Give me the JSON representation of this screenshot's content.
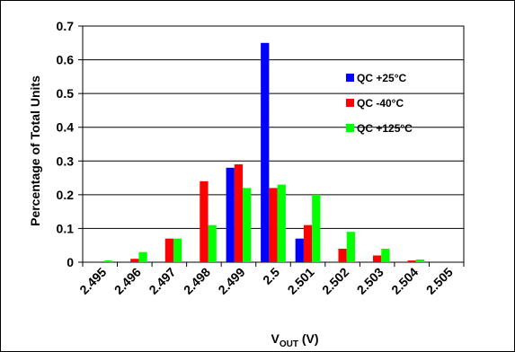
{
  "chart_data": {
    "type": "bar",
    "categories": [
      "2.495",
      "2.496",
      "2.497",
      "2.498",
      "2.499",
      "2.5",
      "2.501",
      "2.502",
      "2.503",
      "2.504",
      "2.505"
    ],
    "series": [
      {
        "name": "QC +25°C",
        "color": "#0000ff",
        "values": [
          0,
          0,
          0,
          0,
          0.28,
          0.65,
          0.07,
          0,
          0,
          0,
          0
        ]
      },
      {
        "name": "QC -40°C",
        "color": "#ff0000",
        "values": [
          0,
          0.01,
          0.07,
          0.24,
          0.29,
          0.22,
          0.11,
          0.04,
          0.02,
          0.005,
          0
        ]
      },
      {
        "name": "QC +125°C",
        "color": "#00ff00",
        "values": [
          0.005,
          0.03,
          0.07,
          0.11,
          0.22,
          0.23,
          0.2,
          0.09,
          0.04,
          0.008,
          0
        ]
      }
    ],
    "ylabel": "Percentage of Total Units",
    "xlabel": {
      "main": "V",
      "subscript": "OUT",
      "suffix": " (V)"
    },
    "ylim": [
      0,
      0.7
    ],
    "yticks": [
      "0",
      "0.1",
      "0.2",
      "0.3",
      "0.4",
      "0.5",
      "0.6",
      "0.7"
    ],
    "grid": "horizontal",
    "legend_position": "right"
  }
}
